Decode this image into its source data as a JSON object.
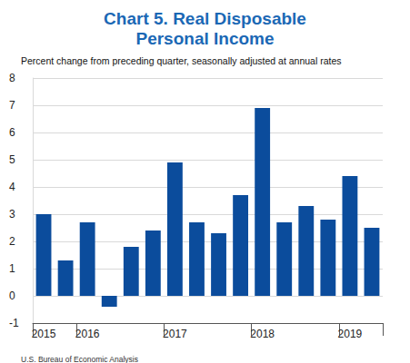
{
  "chart_data": {
    "type": "bar",
    "title": "Chart 5. Real Disposable\nPersonal Income",
    "subtitle": "Percent change from preceding quarter, seasonally adjusted at annual rates",
    "source": "U.S. Bureau of Economic Analysis",
    "categories": [
      "2015",
      null,
      "2016",
      null,
      null,
      null,
      "2017",
      null,
      null,
      null,
      "2018",
      null,
      null,
      null,
      "2019",
      null
    ],
    "values": [
      3.0,
      1.3,
      2.7,
      -0.4,
      1.8,
      2.4,
      4.9,
      2.7,
      2.3,
      3.7,
      6.9,
      2.7,
      3.3,
      2.8,
      4.4,
      2.5
    ],
    "color": "#0b4c9c",
    "ylim": [
      -1,
      8
    ],
    "yticks": [
      -1,
      0,
      1,
      2,
      3,
      4,
      5,
      6,
      7,
      8
    ],
    "grid": true
  }
}
